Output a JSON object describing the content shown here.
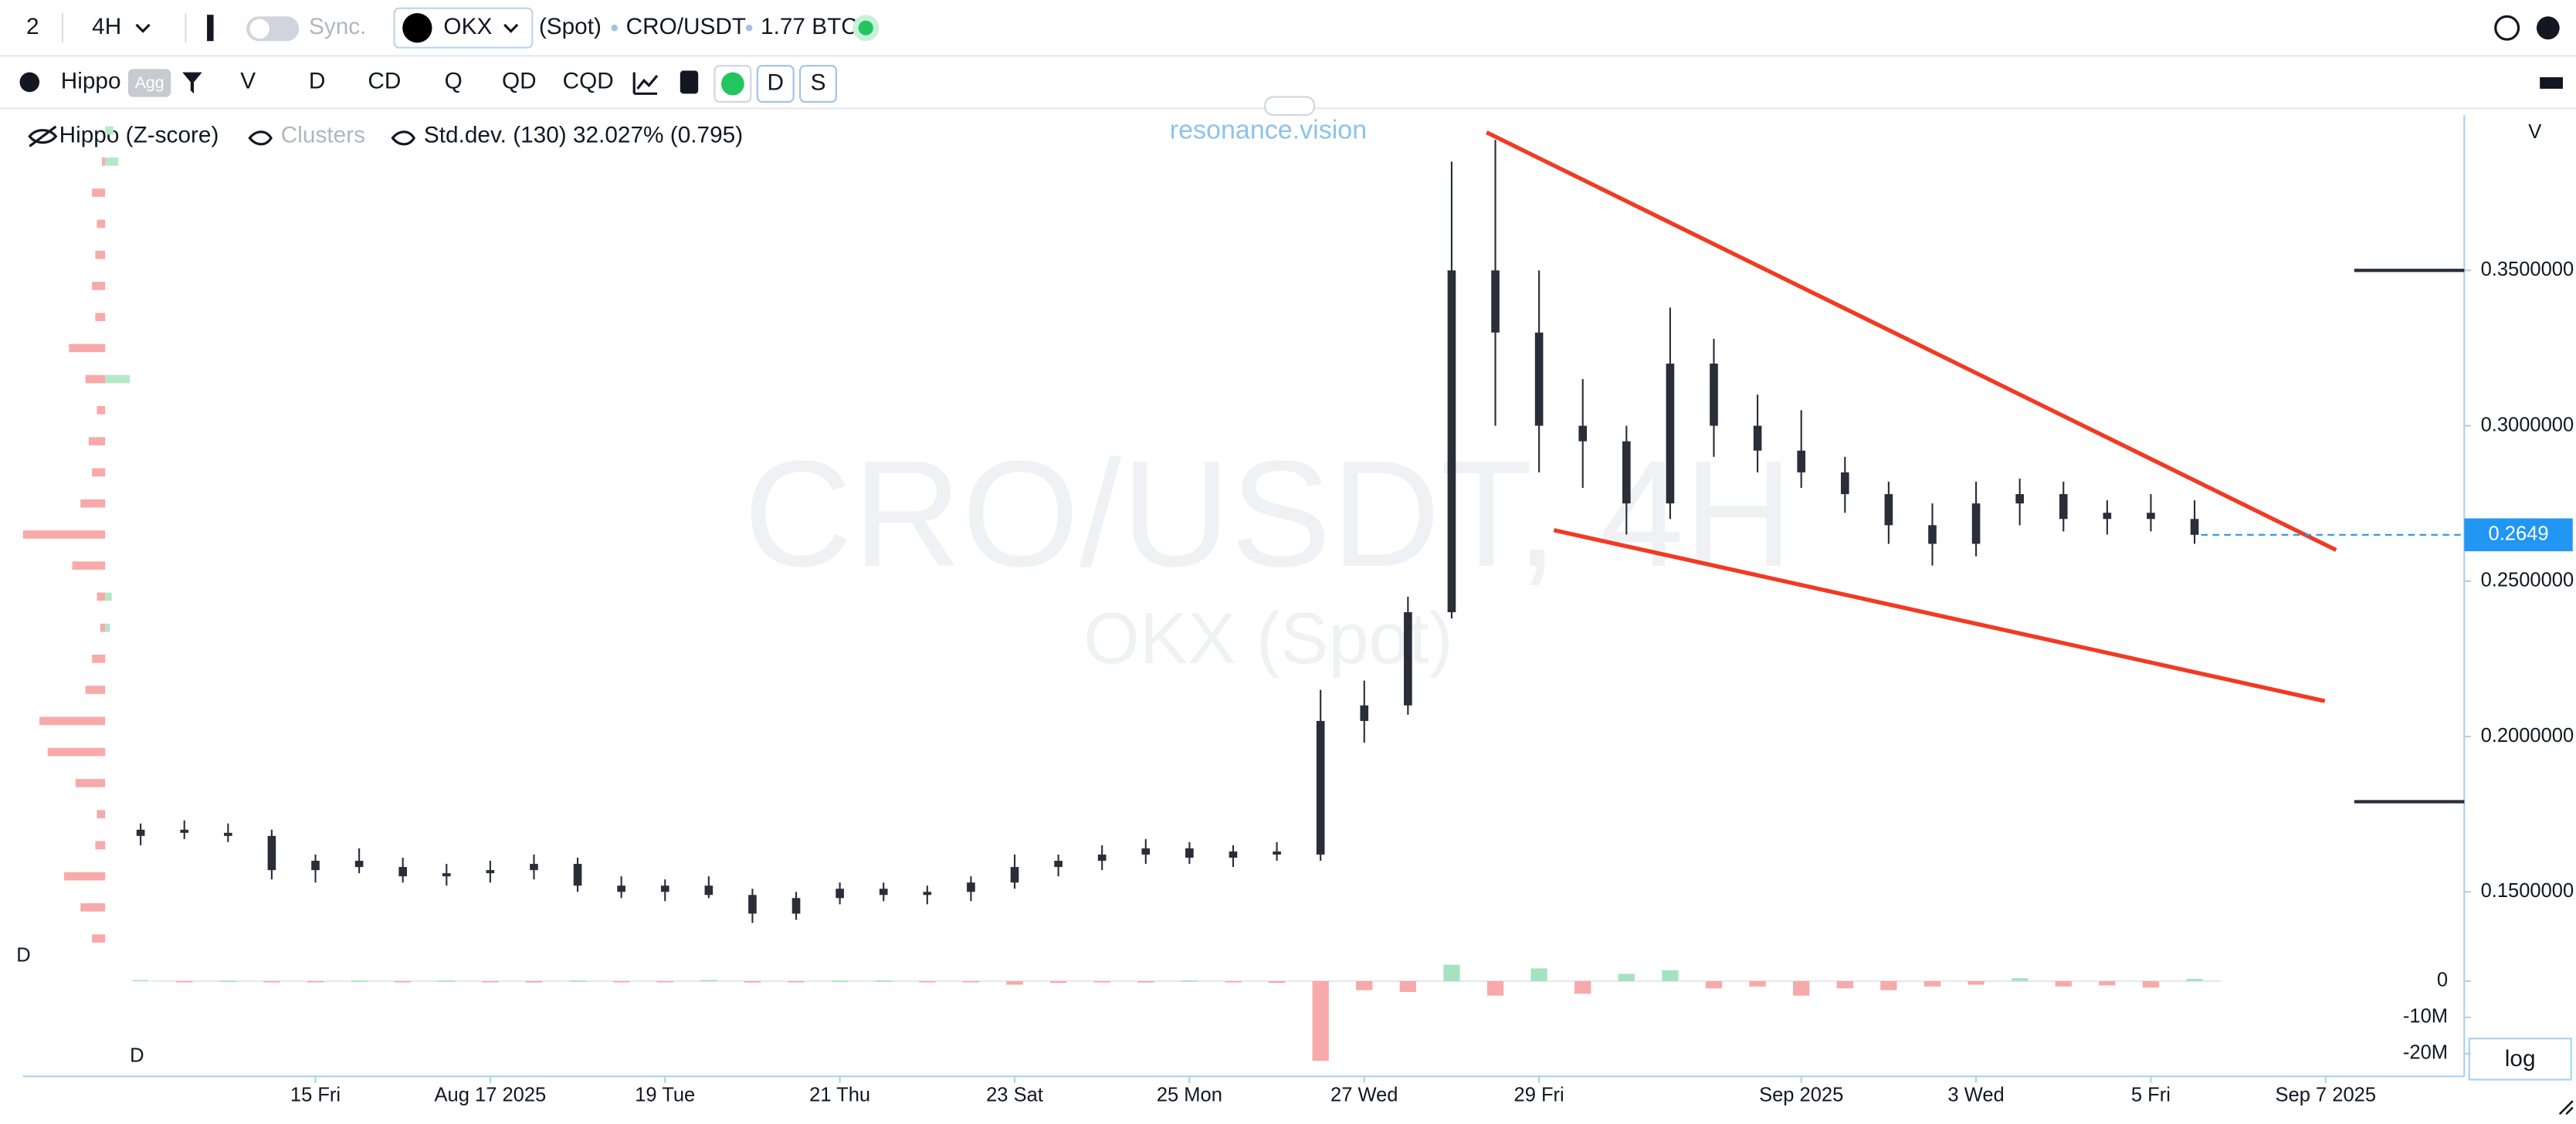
{
  "toolbar": {
    "layout": "2",
    "interval": "4H",
    "sync": "Sync.",
    "exchange": "OKX",
    "market": "(Spot)",
    "pair": "CRO/USDT",
    "volume": "1.77 BTC"
  },
  "toolbar2": {
    "profile": "Hippo",
    "agg": "Agg",
    "buttons": [
      "V",
      "D",
      "CD",
      "Q",
      "QD",
      "CQD"
    ],
    "toggles": [
      "D",
      "S"
    ]
  },
  "legend": {
    "hippo": "Hippo (Z-score)",
    "clusters": "Clusters",
    "stddev": "Std.dev. (130) 32.027% (0.795)"
  },
  "watermark": {
    "site": "resonance.vision",
    "symbol": "CRO/USDT, 4H",
    "exchange": "OKX (Spot)"
  },
  "labels": {
    "volume_scale": "V",
    "pane1": "D",
    "pane2": "D",
    "log": "log"
  },
  "chart_data": {
    "type": "candlestick",
    "color": "#2a2e39",
    "last_price_color": "#2196f3",
    "x": [
      13,
      13.5,
      14,
      14.5,
      15,
      15.5,
      16,
      16.5,
      17,
      17.5,
      18,
      18.5,
      19,
      19.5,
      20,
      20.5,
      21,
      21.5,
      22,
      22.5,
      23,
      23.5,
      24,
      24.5,
      25,
      25.5,
      26,
      26.5,
      27,
      27.5,
      28,
      28.5,
      29,
      29.5,
      30,
      30.5,
      31,
      31.5,
      32,
      32.5,
      33,
      33.5,
      34,
      34.5,
      35,
      35.5,
      36,
      36.5
    ],
    "open": [
      0.168,
      0.17,
      0.169,
      0.168,
      0.157,
      0.16,
      0.158,
      0.155,
      0.156,
      0.157,
      0.159,
      0.152,
      0.15,
      0.152,
      0.149,
      0.143,
      0.148,
      0.151,
      0.149,
      0.15,
      0.153,
      0.158,
      0.16,
      0.162,
      0.164,
      0.161,
      0.163,
      0.162,
      0.205,
      0.21,
      0.24,
      0.35,
      0.33,
      0.3,
      0.295,
      0.275,
      0.32,
      0.3,
      0.292,
      0.285,
      0.278,
      0.268,
      0.262,
      0.275,
      0.278,
      0.27,
      0.272,
      0.27
    ],
    "high": [
      0.172,
      0.173,
      0.172,
      0.17,
      0.162,
      0.164,
      0.161,
      0.159,
      0.16,
      0.162,
      0.161,
      0.155,
      0.154,
      0.155,
      0.151,
      0.15,
      0.153,
      0.153,
      0.152,
      0.155,
      0.162,
      0.162,
      0.165,
      0.167,
      0.166,
      0.165,
      0.166,
      0.215,
      0.218,
      0.245,
      0.385,
      0.392,
      0.35,
      0.315,
      0.3,
      0.338,
      0.328,
      0.31,
      0.305,
      0.29,
      0.282,
      0.275,
      0.282,
      0.283,
      0.282,
      0.276,
      0.278,
      0.276
    ],
    "low": [
      0.165,
      0.167,
      0.166,
      0.154,
      0.153,
      0.156,
      0.153,
      0.152,
      0.153,
      0.154,
      0.15,
      0.148,
      0.147,
      0.148,
      0.14,
      0.141,
      0.146,
      0.147,
      0.146,
      0.147,
      0.151,
      0.155,
      0.157,
      0.159,
      0.159,
      0.158,
      0.16,
      0.16,
      0.198,
      0.207,
      0.238,
      0.3,
      0.285,
      0.28,
      0.265,
      0.27,
      0.29,
      0.285,
      0.28,
      0.272,
      0.262,
      0.255,
      0.258,
      0.268,
      0.266,
      0.265,
      0.266,
      0.262
    ],
    "close": [
      0.17,
      0.169,
      0.168,
      0.157,
      0.16,
      0.158,
      0.155,
      0.156,
      0.157,
      0.159,
      0.152,
      0.15,
      0.152,
      0.149,
      0.143,
      0.148,
      0.151,
      0.149,
      0.15,
      0.153,
      0.158,
      0.16,
      0.162,
      0.164,
      0.161,
      0.163,
      0.162,
      0.205,
      0.21,
      0.24,
      0.35,
      0.33,
      0.3,
      0.295,
      0.275,
      0.32,
      0.3,
      0.292,
      0.285,
      0.278,
      0.268,
      0.262,
      0.275,
      0.278,
      0.27,
      0.272,
      0.27,
      0.2649
    ],
    "xlim": [
      11.654,
      39.586
    ],
    "xticks": [
      {
        "value": 15,
        "label": "15 Fri"
      },
      {
        "value": 17,
        "label": "Aug 17 2025"
      },
      {
        "value": 19,
        "label": "19 Tue"
      },
      {
        "value": 21,
        "label": "21 Thu"
      },
      {
        "value": 23,
        "label": "23 Sat"
      },
      {
        "value": 25,
        "label": "25 Mon"
      },
      {
        "value": 27,
        "label": "27 Wed"
      },
      {
        "value": 29,
        "label": "29 Fri"
      },
      {
        "value": 32,
        "label": "Sep 2025"
      },
      {
        "value": 34,
        "label": "3 Wed"
      },
      {
        "value": 36,
        "label": "5 Fri"
      },
      {
        "value": 38,
        "label": "Sep 7 2025"
      }
    ],
    "ylim": [
      0.125,
      0.4
    ],
    "yticks": [
      {
        "value": 0.35,
        "label": "0.3500000"
      },
      {
        "value": 0.3,
        "label": "0.3000000"
      },
      {
        "value": 0.25,
        "label": "0.2500000"
      },
      {
        "value": 0.2,
        "label": "0.2000000"
      },
      {
        "value": 0.15,
        "label": "0.1500000"
      }
    ],
    "levels": {
      "color": "#2a2e39",
      "values": [
        0.35,
        0.179
      ]
    },
    "trendlines": {
      "color": "#f23a22",
      "lines": [
        {
          "x": [
            28.4,
            38.12
          ],
          "y": [
            0.3944,
            0.26
          ]
        },
        {
          "x": [
            29.17,
            37.99
          ],
          "y": [
            0.2664,
            0.2114
          ]
        }
      ]
    },
    "volume_profile": {
      "sell_color": "#f8a9a9",
      "buy_color": "#b4e8c8",
      "xlim": [
        0,
        55
      ],
      "prices": [
        0.395,
        0.385,
        0.375,
        0.365,
        0.355,
        0.345,
        0.335,
        0.325,
        0.315,
        0.305,
        0.295,
        0.285,
        0.275,
        0.265,
        0.255,
        0.245,
        0.235,
        0.225,
        0.215,
        0.205,
        0.195,
        0.185,
        0.175,
        0.165,
        0.155,
        0.145,
        0.135
      ],
      "sell": [
        0,
        2,
        8,
        5,
        6,
        8,
        6,
        22,
        12,
        5,
        10,
        8,
        15,
        50,
        20,
        5,
        3,
        8,
        12,
        40,
        35,
        18,
        5,
        6,
        25,
        15,
        8
      ],
      "buy": [
        5,
        8,
        0,
        0,
        0,
        0,
        0,
        0,
        15,
        0,
        0,
        0,
        0,
        0,
        0,
        4,
        3,
        0,
        0,
        0,
        0,
        0,
        0,
        0,
        0,
        0,
        0
      ]
    },
    "delta": {
      "type": "bar",
      "pos_color": "#a5e3bf",
      "neg_color": "#f8a9a9",
      "ylim": [
        -24000000,
        5000000
      ],
      "yticks": [
        0,
        {
          "value": -10000000,
          "label": "-10M"
        },
        {
          "value": -20000000,
          "label": "-20M"
        }
      ],
      "values": [
        300000,
        -200000,
        100000,
        -300000,
        -200000,
        100000,
        -200000,
        200000,
        -300000,
        -400000,
        200000,
        -300000,
        -200000,
        300000,
        -400000,
        -200000,
        100000,
        200000,
        -300000,
        -200000,
        -1000000,
        -500000,
        -300000,
        -400000,
        200000,
        -300000,
        -500000,
        -22000000,
        -2500000,
        -3000000,
        4500000,
        -4000000,
        3500000,
        -3500000,
        2000000,
        3000000,
        -2000000,
        -1500000,
        -4000000,
        -2000000,
        -2500000,
        -1500000,
        -1000000,
        800000,
        -1500000,
        -1200000,
        -1800000,
        600000
      ]
    }
  }
}
